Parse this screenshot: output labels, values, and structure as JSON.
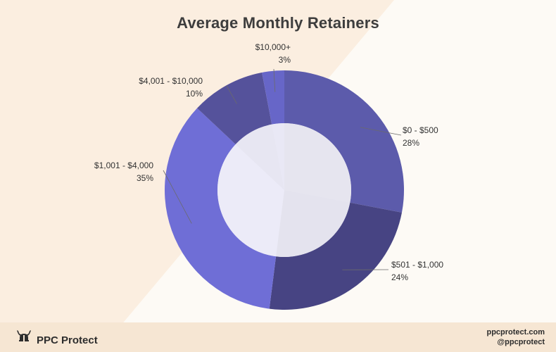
{
  "colors": {
    "background": "#fdfaf5",
    "band": "#fbeee0",
    "footer": "#f6e6d3",
    "hole": "#e9e8f5"
  },
  "chart_data": {
    "type": "pie",
    "title": "Average Monthly Retainers",
    "slices": [
      {
        "label": "$0 - $500",
        "percent_text": "28%",
        "value": 28,
        "color": "#5c5bab"
      },
      {
        "label": "$501 - $1,000",
        "percent_text": "24%",
        "value": 24,
        "color": "#474483"
      },
      {
        "label": "$1,001 - $4,000",
        "percent_text": "35%",
        "value": 35,
        "color": "#6f6ed6"
      },
      {
        "label": "$4,001 - $10,000",
        "percent_text": "10%",
        "value": 10,
        "color": "#55529b"
      },
      {
        "label": "$10,000+",
        "percent_text": "3%",
        "value": 3,
        "color": "#6766c8"
      }
    ]
  },
  "footer": {
    "brand": "PPC Protect",
    "logo_icon": "viking-helmet-icon",
    "website": "ppcprotect.com",
    "handle": "@ppcprotect"
  }
}
